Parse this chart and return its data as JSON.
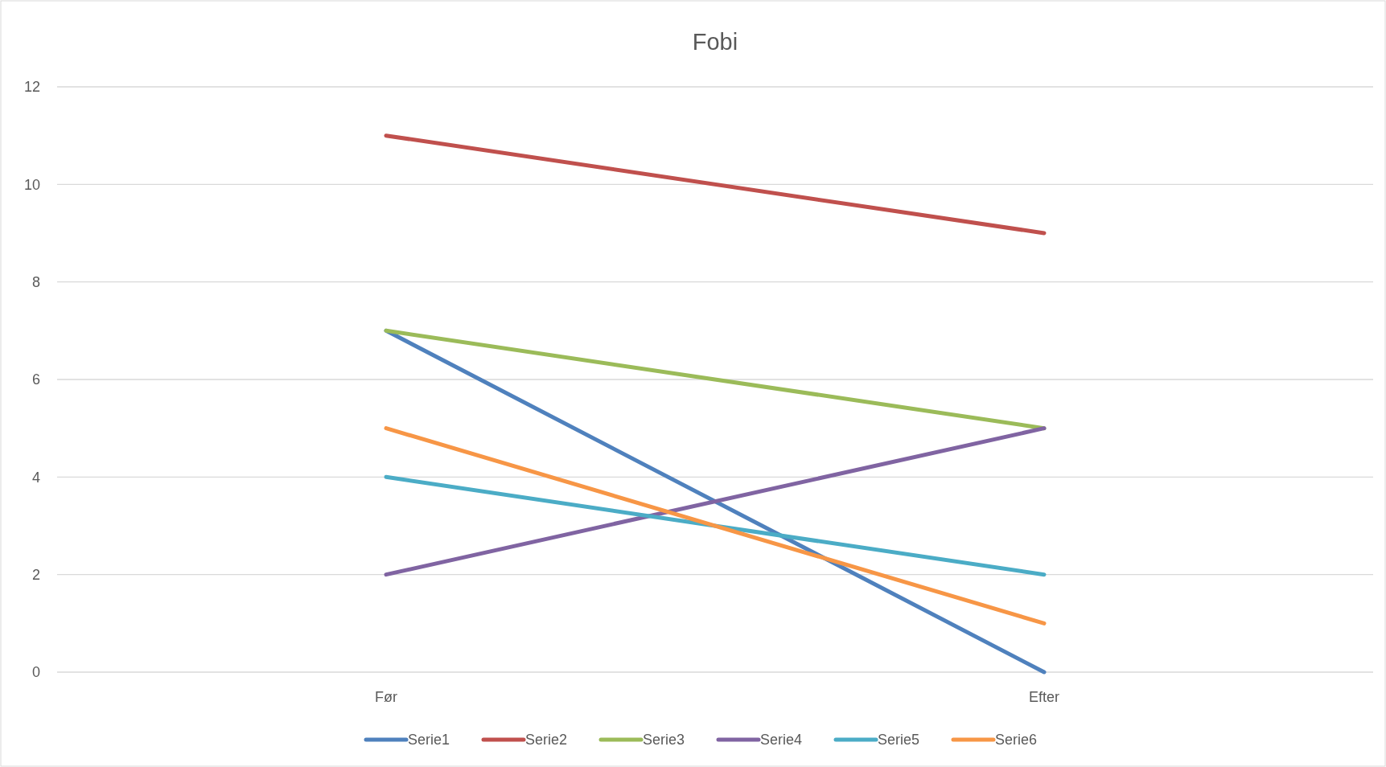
{
  "chart_data": {
    "type": "line",
    "title": "Fobi",
    "categories": [
      "Før",
      "Efter"
    ],
    "series": [
      {
        "name": "Serie1",
        "color": "#4f81bd",
        "values": [
          7,
          0
        ]
      },
      {
        "name": "Serie2",
        "color": "#c0504d",
        "values": [
          11,
          9
        ]
      },
      {
        "name": "Serie3",
        "color": "#9bbb59",
        "values": [
          7,
          5
        ]
      },
      {
        "name": "Serie4",
        "color": "#8064a2",
        "values": [
          2,
          5
        ]
      },
      {
        "name": "Serie5",
        "color": "#4bacc6",
        "values": [
          4,
          2
        ]
      },
      {
        "name": "Serie6",
        "color": "#f79646",
        "values": [
          5,
          1
        ]
      }
    ],
    "ylim": [
      0,
      12
    ],
    "yticks": [
      0,
      2,
      4,
      6,
      8,
      10,
      12
    ],
    "grid": "y",
    "legend": "bottom",
    "marker": "none",
    "line_style": "solid"
  }
}
